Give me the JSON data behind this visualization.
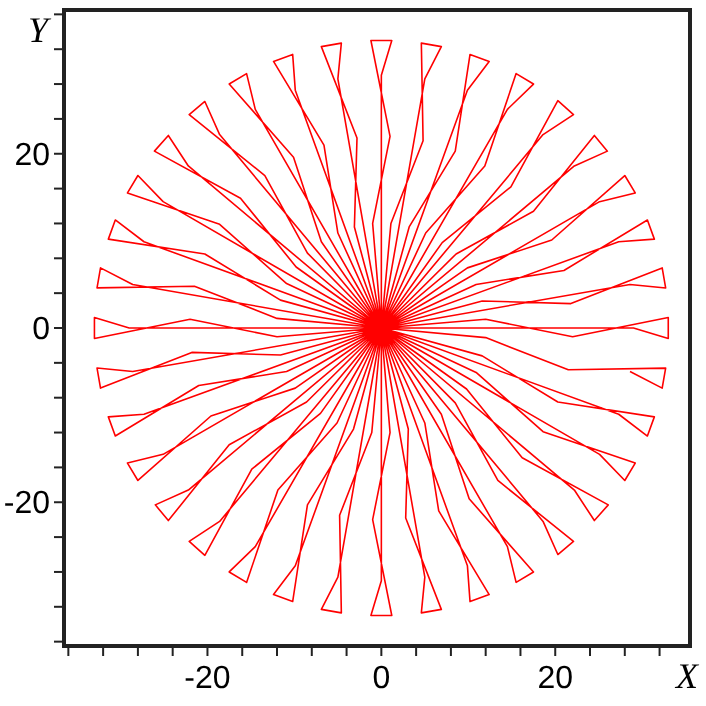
{
  "chart_data": {
    "type": "line",
    "xlabel": "X",
    "ylabel": "Y",
    "xlim": [
      -36.5,
      35.5
    ],
    "ylim": [
      -36.5,
      36.5
    ],
    "xticks": [
      {
        "value": -36,
        "label": null
      },
      {
        "value": -32,
        "label": null
      },
      {
        "value": -28,
        "label": null
      },
      {
        "value": -24,
        "label": null
      },
      -20,
      {
        "value": -16,
        "label": null
      },
      {
        "value": -12,
        "label": null
      },
      {
        "value": -8,
        "label": null
      },
      {
        "value": -4,
        "label": null
      },
      0,
      {
        "value": 4,
        "label": null
      },
      {
        "value": 8,
        "label": null
      },
      {
        "value": 12,
        "label": null
      },
      {
        "value": 16,
        "label": null
      },
      20,
      {
        "value": 24,
        "label": null
      },
      {
        "value": 28,
        "label": null
      },
      {
        "value": 32,
        "label": null
      }
    ],
    "yticks": [
      {
        "value": -36,
        "label": null
      },
      {
        "value": -32,
        "label": null
      },
      {
        "value": -28,
        "label": null
      },
      {
        "value": -24,
        "label": null
      },
      -20,
      {
        "value": -16,
        "label": null
      },
      {
        "value": -12,
        "label": null
      },
      {
        "value": -8,
        "label": null
      },
      {
        "value": -4,
        "label": null
      },
      0,
      {
        "value": 4,
        "label": null
      },
      {
        "value": 8,
        "label": null
      },
      {
        "value": 12,
        "label": null
      },
      {
        "value": 16,
        "label": null
      },
      20,
      {
        "value": 24,
        "label": null
      },
      {
        "value": 28,
        "label": null
      },
      {
        "value": 32,
        "label": null
      },
      {
        "value": 36,
        "label": null
      }
    ],
    "grid": false,
    "marker": "none",
    "line_style": "solid",
    "series": [
      {
        "color": "#ff0000",
        "x": [
          0,
          12,
          22,
          33,
          33,
          29,
          0,
          11.6,
          21.8,
          32.3,
          32.7,
          28.6,
          0,
          10.9,
          21.0,
          30.6,
          31.4,
          27.3,
          0,
          9.9,
          19.6,
          28.0,
          29.2,
          25.1,
          0,
          8.6,
          17.5,
          24.5,
          26.0,
          22.2,
          0,
          7.0,
          14.9,
          20.3,
          22.1,
          18.6,
          0,
          5.1,
          11.9,
          15.5,
          17.5,
          14.5,
          0,
          3.2,
          8.5,
          10.2,
          12.4,
          9.9,
          0,
          1.1,
          4.8,
          4.6,
          6.9,
          5.0,
          0,
          -1,
          1,
          -1.2,
          1.2,
          0,
          0,
          -3.1,
          -2.8,
          -6.9,
          -4.6,
          -5.0,
          0,
          -5.0,
          -6.6,
          -12.4,
          -10.2,
          -9.9,
          0,
          -6.9,
          -10.1,
          -17.5,
          -15.5,
          -14.5,
          0,
          -8.5,
          -13.4,
          -22.1,
          -20.3,
          -18.6,
          0,
          -9.8,
          -16.2,
          -26.1,
          -24.5,
          -22.2,
          0,
          -10.9,
          -18.6,
          -29.2,
          -28.0,
          -25.1,
          0,
          -11.6,
          -20.3,
          -31.4,
          -30.6,
          -27.3,
          0,
          -12.0,
          -21.5,
          -32.7,
          -32.3,
          -28.6,
          0,
          -12,
          -22,
          -33,
          -33,
          -29,
          0,
          -11.6,
          -21.8,
          -32.3,
          -32.7,
          -28.6,
          0,
          -10.9,
          -21.0,
          -30.6,
          -31.4,
          -27.3,
          0,
          -9.9,
          -19.6,
          -28.0,
          -29.2,
          -25.1,
          0,
          -8.6,
          -17.5,
          -24.5,
          -26.0,
          -22.2,
          0,
          -7.0,
          -14.9,
          -20.3,
          -22.1,
          -18.6,
          0,
          -5.1,
          -11.9,
          -15.5,
          -17.5,
          -14.5,
          0,
          -3.2,
          -8.5,
          -10.2,
          -12.4,
          -9.9,
          0,
          -1.1,
          -4.8,
          -4.6,
          -6.9,
          -5.0,
          0,
          1,
          -1,
          1.2,
          -1.2,
          0,
          0,
          3.1,
          2.8,
          6.9,
          4.6,
          5.0,
          0,
          5.0,
          6.6,
          12.4,
          10.2,
          9.9,
          0,
          6.9,
          10.1,
          17.5,
          15.5,
          14.5,
          0,
          8.5,
          13.4,
          22.1,
          20.3,
          18.6,
          0,
          9.8,
          16.2,
          26.1,
          24.5,
          22.2,
          0,
          10.9,
          18.6,
          29.2,
          28.0,
          25.1,
          0,
          11.6,
          20.3,
          31.4,
          30.6,
          27.3,
          0,
          12.0,
          21.5,
          32.7,
          32.3,
          28.6
        ],
        "values": [
          0,
          1,
          -1,
          1.2,
          -1.2,
          0,
          0,
          3.1,
          2.8,
          6.9,
          4.6,
          5.0,
          0,
          5.0,
          6.6,
          12.4,
          10.2,
          9.9,
          0,
          6.9,
          10.1,
          17.5,
          15.5,
          14.5,
          0,
          8.5,
          13.4,
          22.1,
          20.3,
          18.6,
          0,
          9.8,
          16.2,
          26.1,
          24.5,
          22.2,
          0,
          10.9,
          18.6,
          29.2,
          28.0,
          25.1,
          0,
          11.6,
          20.3,
          31.4,
          30.6,
          27.3,
          0,
          12.0,
          21.5,
          32.7,
          32.3,
          28.6,
          0,
          12,
          22,
          33,
          33,
          29,
          0,
          11.6,
          21.8,
          32.3,
          32.7,
          28.6,
          0,
          10.9,
          21.0,
          30.6,
          31.4,
          27.3,
          0,
          9.9,
          19.6,
          28.0,
          29.2,
          25.1,
          0,
          8.6,
          17.5,
          24.5,
          26.0,
          22.2,
          0,
          7.0,
          14.9,
          20.3,
          22.1,
          18.6,
          0,
          5.1,
          11.9,
          15.5,
          17.5,
          14.5,
          0,
          3.2,
          8.5,
          10.2,
          12.4,
          9.9,
          0,
          1.1,
          4.8,
          4.6,
          6.9,
          5.0,
          0,
          -1,
          1,
          -1.2,
          1.2,
          0,
          0,
          -3.1,
          -2.8,
          -6.9,
          -4.6,
          -5.0,
          0,
          -5.0,
          -6.6,
          -12.4,
          -10.2,
          -9.9,
          0,
          -6.9,
          -10.1,
          -17.5,
          -15.5,
          -14.5,
          0,
          -8.5,
          -13.4,
          -22.1,
          -20.3,
          -18.6,
          0,
          -9.8,
          -16.2,
          -26.1,
          -24.5,
          -22.2,
          0,
          -10.9,
          -18.6,
          -29.2,
          -28.0,
          -25.1,
          0,
          -11.6,
          -20.3,
          -31.4,
          -30.6,
          -27.3,
          0,
          -12.0,
          -21.5,
          -32.7,
          -32.3,
          -28.6,
          0,
          -12,
          -22,
          -33,
          -33,
          -29,
          0,
          -11.6,
          -21.8,
          -32.3,
          -32.7,
          -28.6,
          0,
          -10.9,
          -21.0,
          -30.6,
          -31.4,
          -27.3,
          0,
          -9.9,
          -19.6,
          -28.0,
          -29.2,
          -25.1,
          0,
          -8.6,
          -17.5,
          -24.5,
          -26.0,
          -22.2,
          0,
          -7.0,
          -14.9,
          -20.3,
          -22.1,
          -18.6,
          0,
          -5.1,
          -11.9,
          -15.5,
          -17.5,
          -14.5,
          0,
          -3.2,
          -8.5,
          -10.2,
          -12.4,
          -9.9,
          0,
          -1.1,
          -4.8,
          -4.6,
          -6.9,
          -5.0
        ]
      }
    ]
  }
}
